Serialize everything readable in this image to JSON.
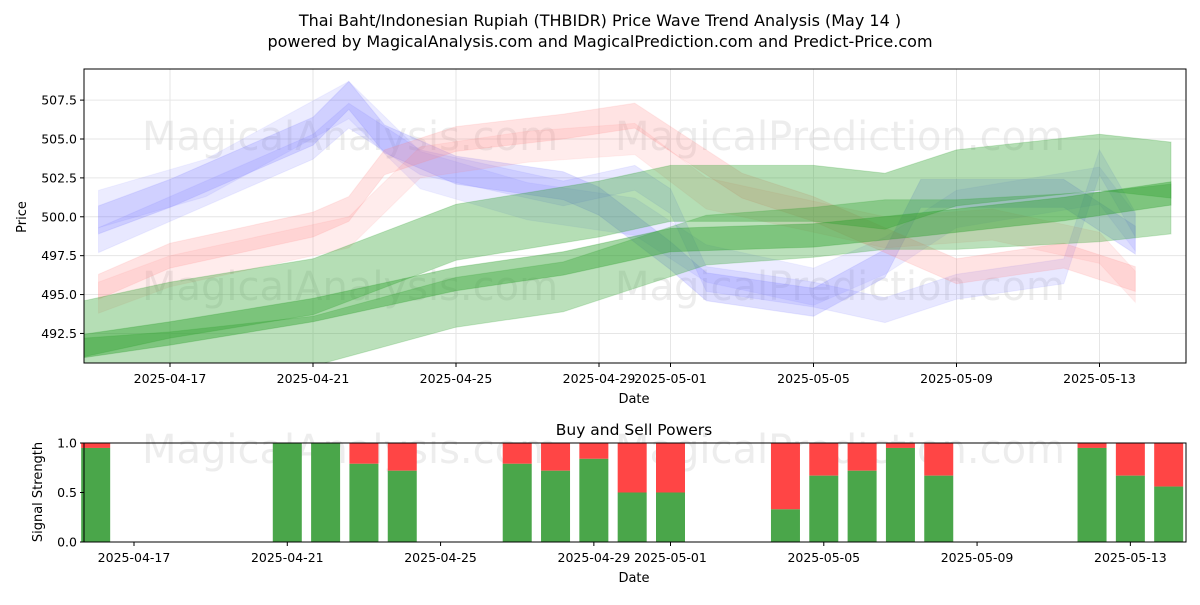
{
  "header": {
    "title": "Thai Baht/Indonesian Rupiah (THBIDR) Price Wave Trend Analysis (May 14 )",
    "subtitle": "powered by MagicalAnalysis.com and MagicalPrediction.com and Predict-Price.com"
  },
  "watermarks": [
    "MagicalAnalysis.com",
    "MagicalPrediction.com"
  ],
  "colors": {
    "blue": "#6f6fff",
    "red": "#ff7f7f",
    "green": "#2ca02c",
    "buy": "#4aa64a",
    "sell": "#ff4545"
  },
  "chart_data": [
    {
      "type": "area",
      "title": "",
      "xlabel": "Date",
      "ylabel": "Price",
      "x_ticks": [
        "2025-04-17",
        "2025-04-21",
        "2025-04-25",
        "2025-04-29",
        "2025-05-01",
        "2025-05-05",
        "2025-05-09",
        "2025-05-13"
      ],
      "y_ticks": [
        "492.5",
        "495.0",
        "497.5",
        "500.0",
        "502.5",
        "505.0",
        "507.5"
      ],
      "xlim": [
        "2025-04-14",
        "2025-05-15"
      ],
      "ylim": [
        490.6,
        509.5
      ],
      "grid": true,
      "bands": [
        {
          "color": "blue",
          "opacity": 0.22,
          "width": 1.8,
          "points": [
            [
              "2025-04-15",
              499.8
            ],
            [
              "2025-04-17",
              501.5
            ],
            [
              "2025-04-21",
              505.5
            ],
            [
              "2025-04-22",
              507.8
            ],
            [
              "2025-04-23",
              505.0
            ],
            [
              "2025-04-25",
              503.0
            ],
            [
              "2025-04-28",
              502.0
            ],
            [
              "2025-04-29",
              501.0
            ],
            [
              "2025-05-01",
              497.5
            ],
            [
              "2025-05-02",
              495.5
            ],
            [
              "2025-05-05",
              494.5
            ],
            [
              "2025-05-07",
              497.0
            ],
            [
              "2025-05-08",
              501.5
            ],
            [
              "2025-05-12",
              501.5
            ],
            [
              "2025-05-14",
              498.5
            ]
          ]
        },
        {
          "color": "blue",
          "opacity": 0.16,
          "width": 1.6,
          "points": [
            [
              "2025-04-15",
              498.5
            ],
            [
              "2025-04-17",
              500.5
            ],
            [
              "2025-04-21",
              504.5
            ],
            [
              "2025-04-22",
              506.5
            ],
            [
              "2025-04-24",
              503.5
            ],
            [
              "2025-04-28",
              501.5
            ],
            [
              "2025-04-30",
              502.5
            ],
            [
              "2025-05-01",
              501.0
            ],
            [
              "2025-05-02",
              496.0
            ],
            [
              "2025-05-05",
              495.0
            ],
            [
              "2025-05-07",
              494.0
            ],
            [
              "2025-05-09",
              495.5
            ],
            [
              "2025-05-12",
              496.5
            ],
            [
              "2025-05-13",
              503.5
            ],
            [
              "2025-05-14",
              499.5
            ]
          ]
        },
        {
          "color": "blue",
          "opacity": 0.13,
          "width": 2.4,
          "points": [
            [
              "2025-04-15",
              500.5
            ],
            [
              "2025-04-18",
              502.5
            ],
            [
              "2025-04-22",
              507.5
            ],
            [
              "2025-04-24",
              503.0
            ],
            [
              "2025-04-27",
              501.0
            ],
            [
              "2025-04-30",
              500.0
            ],
            [
              "2025-05-02",
              497.0
            ],
            [
              "2025-05-05",
              495.5
            ],
            [
              "2025-05-07",
              497.5
            ],
            [
              "2025-05-09",
              500.5
            ],
            [
              "2025-05-13",
              502.0
            ],
            [
              "2025-05-14",
              499.0
            ]
          ]
        },
        {
          "color": "red",
          "opacity": 0.22,
          "width": 1.6,
          "points": [
            [
              "2025-04-15",
              495.5
            ],
            [
              "2025-04-17",
              497.5
            ],
            [
              "2025-04-21",
              499.5
            ],
            [
              "2025-04-22",
              500.5
            ],
            [
              "2025-04-23",
              503.5
            ],
            [
              "2025-04-25",
              505.0
            ],
            [
              "2025-04-28",
              505.8
            ],
            [
              "2025-04-30",
              506.5
            ],
            [
              "2025-05-01",
              505.0
            ],
            [
              "2025-05-03",
              502.0
            ],
            [
              "2025-05-05",
              500.5
            ],
            [
              "2025-05-07",
              498.5
            ],
            [
              "2025-05-09",
              496.5
            ],
            [
              "2025-05-12",
              497.5
            ],
            [
              "2025-05-14",
              496.0
            ]
          ]
        },
        {
          "color": "red",
          "opacity": 0.15,
          "width": 2.0,
          "points": [
            [
              "2025-04-15",
              494.8
            ],
            [
              "2025-04-17",
              496.5
            ],
            [
              "2025-04-21",
              498.5
            ],
            [
              "2025-04-22",
              499.0
            ],
            [
              "2025-04-24",
              503.5
            ],
            [
              "2025-04-27",
              504.5
            ],
            [
              "2025-04-30",
              505.0
            ],
            [
              "2025-05-02",
              501.5
            ],
            [
              "2025-05-05",
              500.0
            ],
            [
              "2025-05-07",
              499.0
            ],
            [
              "2025-05-10",
              499.5
            ],
            [
              "2025-05-13",
              498.0
            ],
            [
              "2025-05-14",
              495.5
            ]
          ]
        },
        {
          "color": "green",
          "opacity": 0.35,
          "width": 3.6,
          "points": [
            [
              "2025-04-14",
              492.5
            ],
            [
              "2025-04-17",
              494.0
            ],
            [
              "2025-04-21",
              495.5
            ],
            [
              "2025-04-25",
              499.0
            ],
            [
              "2025-04-29",
              500.5
            ],
            [
              "2025-05-01",
              501.5
            ],
            [
              "2025-05-05",
              501.5
            ],
            [
              "2025-05-07",
              501.0
            ],
            [
              "2025-05-09",
              502.5
            ],
            [
              "2025-05-13",
              503.5
            ],
            [
              "2025-05-15",
              503.0
            ]
          ]
        },
        {
          "color": "green",
          "opacity": 0.32,
          "width": 3.2,
          "points": [
            [
              "2025-04-14",
              490.5
            ],
            [
              "2025-04-17",
              491.0
            ],
            [
              "2025-04-21",
              492.0
            ],
            [
              "2025-04-25",
              494.5
            ],
            [
              "2025-04-28",
              495.5
            ],
            [
              "2025-04-30",
              497.0
            ],
            [
              "2025-05-02",
              498.5
            ],
            [
              "2025-05-05",
              499.0
            ],
            [
              "2025-05-07",
              499.5
            ],
            [
              "2025-05-09",
              499.5
            ],
            [
              "2025-05-13",
              500.0
            ],
            [
              "2025-05-15",
              500.5
            ]
          ]
        },
        {
          "color": "green",
          "opacity": 0.42,
          "width": 1.5,
          "points": [
            [
              "2025-04-14",
              491.5
            ],
            [
              "2025-04-17",
              492.5
            ],
            [
              "2025-04-21",
              494.0
            ],
            [
              "2025-04-25",
              496.0
            ],
            [
              "2025-04-28",
              497.0
            ],
            [
              "2025-05-01",
              498.5
            ],
            [
              "2025-05-05",
              498.8
            ],
            [
              "2025-05-08",
              499.5
            ],
            [
              "2025-05-12",
              500.5
            ],
            [
              "2025-05-15",
              501.5
            ]
          ]
        }
      ]
    },
    {
      "type": "bar",
      "title": "Buy and Sell Powers",
      "xlabel": "Date",
      "ylabel": "Signal Strength",
      "x_ticks": [
        "2025-04-17",
        "2025-04-21",
        "2025-04-25",
        "2025-04-29",
        "2025-05-01",
        "2025-05-05",
        "2025-05-09",
        "2025-05-13"
      ],
      "y_ticks": [
        "0.0",
        "0.5",
        "1.0"
      ],
      "ylim": [
        0,
        1
      ],
      "series": [
        {
          "name": "Buy",
          "color": "buy"
        },
        {
          "name": "Sell",
          "color": "sell"
        }
      ],
      "bars": [
        {
          "date": "2025-04-16",
          "buy": 0.95
        },
        {
          "date": "2025-04-21",
          "buy": 1.0
        },
        {
          "date": "2025-04-22",
          "buy": 1.0
        },
        {
          "date": "2025-04-23",
          "buy": 0.79
        },
        {
          "date": "2025-04-24",
          "buy": 0.72
        },
        {
          "date": "2025-04-27",
          "buy": 0.79
        },
        {
          "date": "2025-04-28",
          "buy": 0.72
        },
        {
          "date": "2025-04-29",
          "buy": 0.84
        },
        {
          "date": "2025-04-30",
          "buy": 0.5
        },
        {
          "date": "2025-05-01",
          "buy": 0.5
        },
        {
          "date": "2025-05-04",
          "buy": 0.33
        },
        {
          "date": "2025-05-05",
          "buy": 0.67
        },
        {
          "date": "2025-05-06",
          "buy": 0.72
        },
        {
          "date": "2025-05-07",
          "buy": 0.95
        },
        {
          "date": "2025-05-08",
          "buy": 0.67
        },
        {
          "date": "2025-05-12",
          "buy": 0.95
        },
        {
          "date": "2025-05-13",
          "buy": 0.67
        },
        {
          "date": "2025-05-14",
          "buy": 0.56
        }
      ]
    }
  ]
}
